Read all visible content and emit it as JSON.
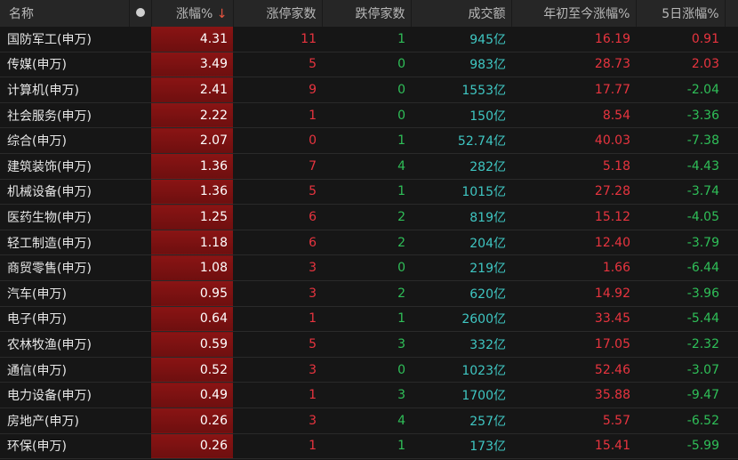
{
  "headers": {
    "name": "名称",
    "dot": "dot-icon",
    "chg": "涨幅%",
    "sort_arrow": "↓",
    "limit_up": "涨停家数",
    "limit_down": "跌停家数",
    "turnover": "成交额",
    "ytd": "年初至今涨幅%",
    "d5": "5日涨幅%"
  },
  "colors": {
    "up": "#e8343f",
    "down": "#2fbf58",
    "turnover": "#3fc6c2",
    "highlight": "#8a1414"
  },
  "rows": [
    [
      "国防军工(申万)",
      "4.31",
      "11",
      "1",
      "945亿",
      "16.19",
      "0.91"
    ],
    [
      "传媒(申万)",
      "3.49",
      "5",
      "0",
      "983亿",
      "28.73",
      "2.03"
    ],
    [
      "计算机(申万)",
      "2.41",
      "9",
      "0",
      "1553亿",
      "17.77",
      "-2.04"
    ],
    [
      "社会服务(申万)",
      "2.22",
      "1",
      "0",
      "150亿",
      "8.54",
      "-3.36"
    ],
    [
      "综合(申万)",
      "2.07",
      "0",
      "1",
      "52.74亿",
      "40.03",
      "-7.38"
    ],
    [
      "建筑装饰(申万)",
      "1.36",
      "7",
      "4",
      "282亿",
      "5.18",
      "-4.43"
    ],
    [
      "机械设备(申万)",
      "1.36",
      "5",
      "1",
      "1015亿",
      "27.28",
      "-3.74"
    ],
    [
      "医药生物(申万)",
      "1.25",
      "6",
      "2",
      "819亿",
      "15.12",
      "-4.05"
    ],
    [
      "轻工制造(申万)",
      "1.18",
      "6",
      "2",
      "204亿",
      "12.40",
      "-3.79"
    ],
    [
      "商贸零售(申万)",
      "1.08",
      "3",
      "0",
      "219亿",
      "1.66",
      "-6.44"
    ],
    [
      "汽车(申万)",
      "0.95",
      "3",
      "2",
      "620亿",
      "14.92",
      "-3.96"
    ],
    [
      "电子(申万)",
      "0.64",
      "1",
      "1",
      "2600亿",
      "33.45",
      "-5.44"
    ],
    [
      "农林牧渔(申万)",
      "0.59",
      "5",
      "3",
      "332亿",
      "17.05",
      "-2.32"
    ],
    [
      "通信(申万)",
      "0.52",
      "3",
      "0",
      "1023亿",
      "52.46",
      "-3.07"
    ],
    [
      "电力设备(申万)",
      "0.49",
      "1",
      "3",
      "1700亿",
      "35.88",
      "-9.47"
    ],
    [
      "房地产(申万)",
      "0.26",
      "3",
      "4",
      "257亿",
      "5.57",
      "-6.52"
    ],
    [
      "环保(申万)",
      "0.26",
      "1",
      "1",
      "173亿",
      "15.41",
      "-5.99"
    ]
  ]
}
